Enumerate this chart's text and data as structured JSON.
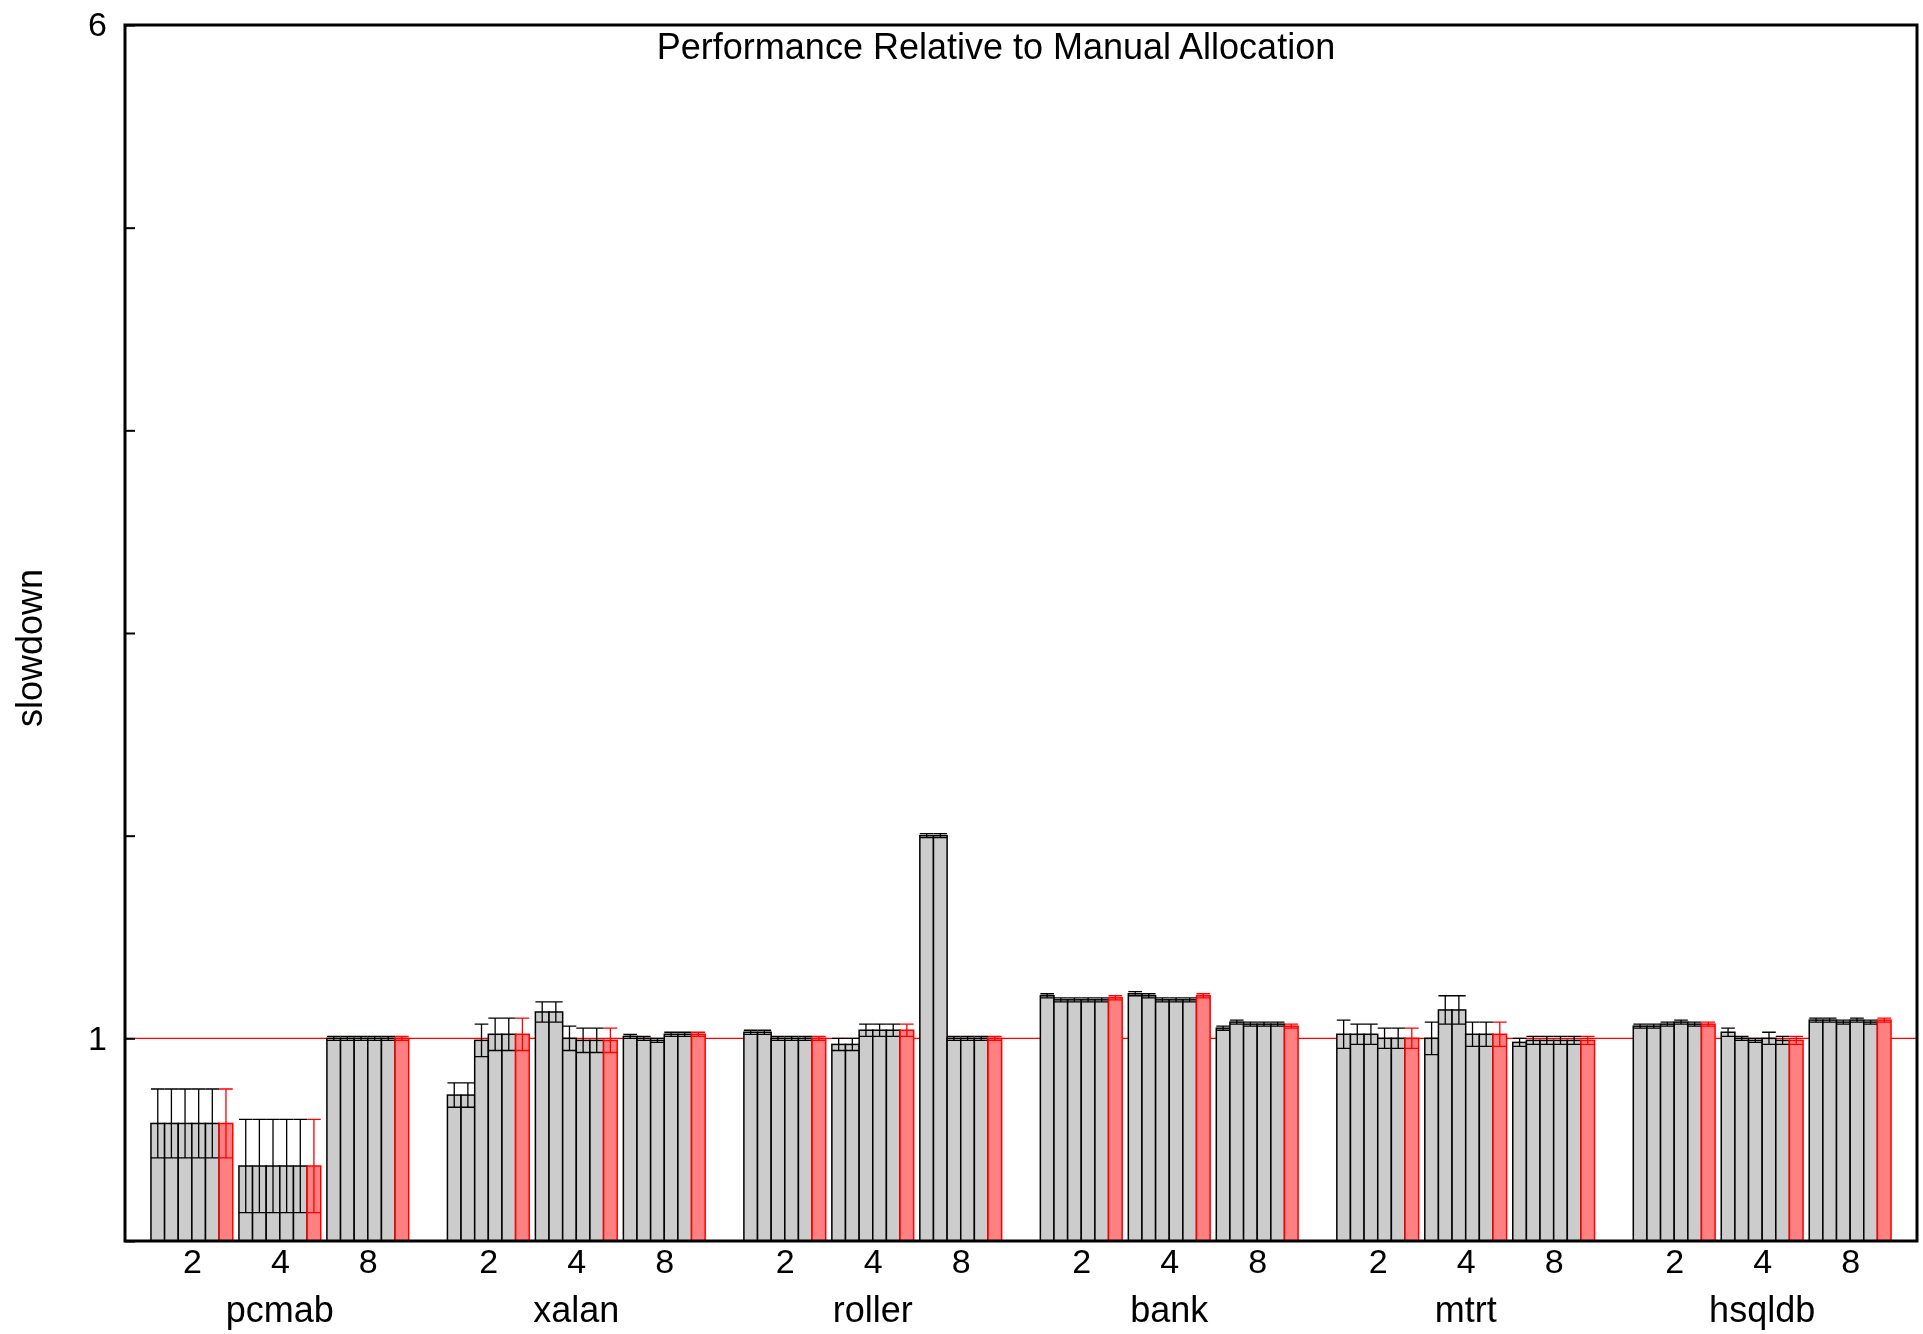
{
  "chart_data": {
    "type": "bar",
    "title": "Performance Relative to Manual Allocation",
    "ylabel": "slowdown",
    "categories": [
      "2",
      "4",
      "8",
      "2",
      "4",
      "8",
      "2",
      "4",
      "8",
      "2",
      "4",
      "8",
      "2",
      "4",
      "8",
      "2",
      "4",
      "8"
    ],
    "annotations": [
      "pcmab",
      "xalan",
      "roller",
      "bank",
      "mtrt",
      "hsqldb"
    ],
    "ylim": [
      0,
      6
    ],
    "yticks": [
      {
        "value": 0,
        "label": null
      },
      1,
      {
        "value": 2,
        "label": null
      },
      {
        "value": 3,
        "label": null
      },
      {
        "value": 4,
        "label": null
      },
      {
        "value": 5,
        "label": null
      },
      6
    ],
    "ref_lines": [
      {
        "axis": "y",
        "value": 1,
        "color": "#ff0000"
      }
    ],
    "series": [
      {
        "color": "#cccccc",
        "values": [
          0.58,
          0.37,
          1.0,
          0.72,
          1.13,
          1.01,
          1.03,
          0.97,
          2.0,
          1.21,
          1.22,
          1.05,
          1.02,
          1.0,
          0.98,
          1.06,
          1.03,
          1.09
        ],
        "errors": [
          0.17,
          0.23,
          0.01,
          0.06,
          0.05,
          0.01,
          0.01,
          0.03,
          0.01,
          0.01,
          0.01,
          0.01,
          0.07,
          0.08,
          0.02,
          0.01,
          0.02,
          0.01
        ]
      },
      {
        "color": "#cccccc",
        "values": [
          0.58,
          0.37,
          1.0,
          0.72,
          1.13,
          1.0,
          1.03,
          0.97,
          2.0,
          1.19,
          1.21,
          1.08,
          1.02,
          1.14,
          0.99,
          1.06,
          1.0,
          1.09
        ],
        "errors": [
          0.17,
          0.23,
          0.01,
          0.06,
          0.05,
          0.01,
          0.01,
          0.03,
          0.01,
          0.01,
          0.01,
          0.01,
          0.05,
          0.07,
          0.02,
          0.01,
          0.01,
          0.01
        ]
      },
      {
        "color": "#cccccc",
        "values": [
          0.58,
          0.37,
          1.0,
          0.99,
          1.0,
          0.99,
          1.0,
          1.04,
          1.0,
          1.19,
          1.19,
          1.07,
          1.02,
          1.14,
          0.99,
          1.07,
          0.99,
          1.08
        ],
        "errors": [
          0.17,
          0.23,
          0.01,
          0.08,
          0.06,
          0.01,
          0.01,
          0.03,
          0.01,
          0.01,
          0.01,
          0.01,
          0.05,
          0.07,
          0.02,
          0.01,
          0.01,
          0.01
        ]
      },
      {
        "color": "#cccccc",
        "values": [
          0.58,
          0.37,
          1.0,
          1.02,
          0.99,
          1.02,
          1.0,
          1.04,
          1.0,
          1.19,
          1.19,
          1.07,
          1.0,
          1.02,
          0.99,
          1.08,
          1.0,
          1.09
        ],
        "errors": [
          0.17,
          0.23,
          0.01,
          0.08,
          0.06,
          0.01,
          0.01,
          0.03,
          0.01,
          0.01,
          0.01,
          0.01,
          0.05,
          0.06,
          0.02,
          0.01,
          0.03,
          0.01
        ]
      },
      {
        "color": "#cccccc",
        "values": [
          0.58,
          0.37,
          1.0,
          1.02,
          0.99,
          1.02,
          1.0,
          1.04,
          1.0,
          1.19,
          1.19,
          1.07,
          1.0,
          1.02,
          0.99,
          1.07,
          0.99,
          1.08
        ],
        "errors": [
          0.17,
          0.23,
          0.01,
          0.08,
          0.06,
          0.01,
          0.01,
          0.03,
          0.01,
          0.01,
          0.01,
          0.01,
          0.05,
          0.06,
          0.02,
          0.01,
          0.02,
          0.01
        ]
      },
      {
        "color": "#ff8080",
        "values": [
          0.58,
          0.37,
          1.0,
          1.02,
          0.99,
          1.02,
          1.0,
          1.04,
          1.0,
          1.2,
          1.21,
          1.06,
          1.0,
          1.02,
          0.99,
          1.07,
          0.99,
          1.09
        ],
        "errors": [
          0.17,
          0.23,
          0.01,
          0.08,
          0.06,
          0.01,
          0.01,
          0.03,
          0.01,
          0.01,
          0.01,
          0.01,
          0.05,
          0.06,
          0.02,
          0.01,
          0.02,
          0.01
        ]
      }
    ]
  }
}
